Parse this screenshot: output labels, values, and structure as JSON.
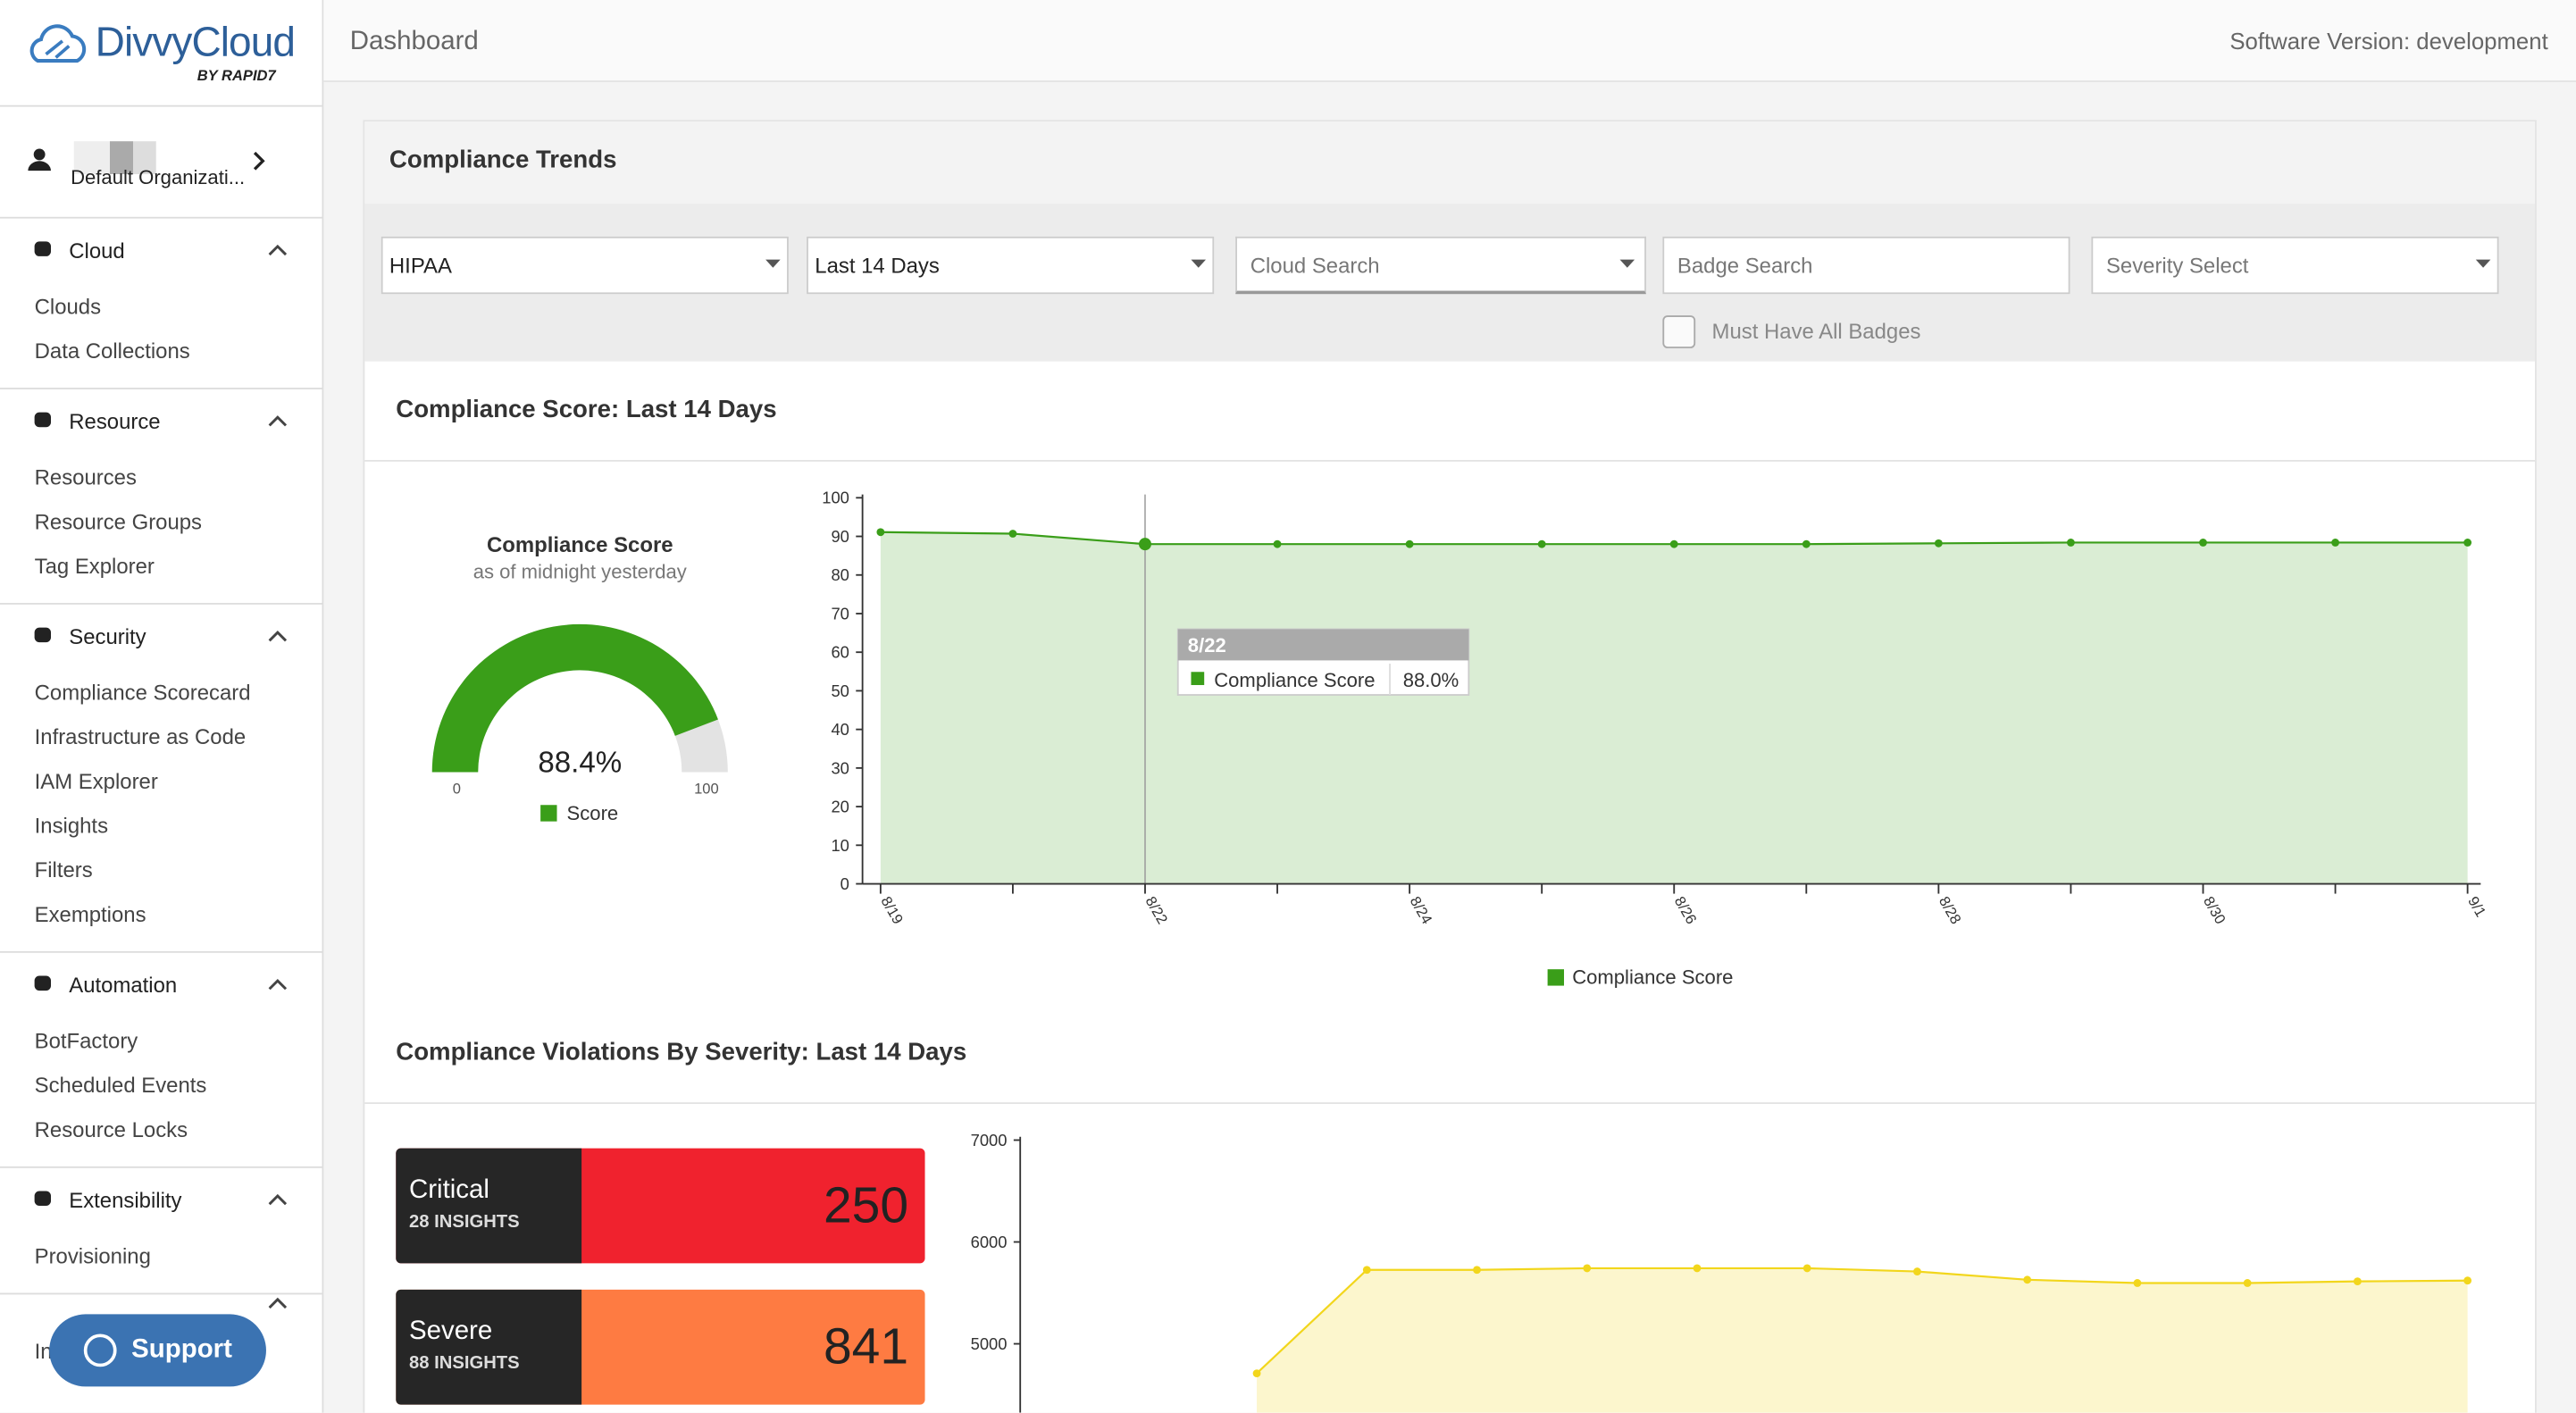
{
  "header": {
    "logo": "DivvyCloud",
    "logo_byline": "BY RAPID7",
    "page_title": "Dashboard",
    "version": "Software Version: development"
  },
  "sidebar": {
    "organization": "Default Organizati...",
    "sections": [
      {
        "title": "Cloud",
        "items": [
          "Clouds",
          "Data Collections"
        ]
      },
      {
        "title": "Resource",
        "items": [
          "Resources",
          "Resource Groups",
          "Tag Explorer"
        ]
      },
      {
        "title": "Security",
        "items": [
          "Compliance Scorecard",
          "Infrastructure as Code",
          "IAM Explorer",
          "Insights",
          "Filters",
          "Exemptions"
        ]
      },
      {
        "title": "Automation",
        "items": [
          "BotFactory",
          "Scheduled Events",
          "Resource Locks"
        ]
      },
      {
        "title": "Extensibility",
        "items": [
          "Provisioning"
        ]
      },
      {
        "items": [
          "Integrations"
        ]
      }
    ],
    "support_button": "Support"
  },
  "trends": {
    "title": "Compliance Trends",
    "filters": {
      "framework": "HIPAA",
      "range": "Last 14 Days",
      "cloud": "Cloud Search",
      "badge": "Badge Search",
      "severity": "Severity Select",
      "badge_checkbox": "Must Have All Badges"
    }
  },
  "sections": {
    "score": "Compliance Score: Last 14 Days",
    "violations": "Compliance Violations By Severity: Last 14 Days"
  },
  "severity_cards": [
    {
      "name": "Critical",
      "insights": "28 INSIGHTS",
      "count": 250,
      "color": "#f0222e"
    },
    {
      "name": "Severe",
      "insights": "88 INSIGHTS",
      "count": 841,
      "color": "#fe7b42"
    }
  ],
  "chart_data": [
    {
      "type": "gauge",
      "title": "Compliance Score",
      "subtitle": "as of midnight yesterday",
      "min": 0,
      "max": 100,
      "value": 88.4,
      "value_label": "88.4%",
      "color": "#3a9e19",
      "legend": "Score"
    },
    {
      "type": "area",
      "categories": [
        "8/19",
        null,
        "8/22",
        null,
        "8/24",
        null,
        "8/26",
        null,
        "8/28",
        null,
        "8/30",
        null,
        "9/1"
      ],
      "series": [
        {
          "name": "Compliance Score",
          "color": "#3a9e19",
          "values": [
            91.1,
            90.7,
            88.0,
            88.0,
            88.0,
            88.0,
            88.0,
            88.0,
            88.2,
            88.4,
            88.4,
            88.4,
            88.4
          ]
        }
      ],
      "ylim": [
        0,
        100
      ],
      "yticks": [
        0,
        10,
        20,
        30,
        40,
        50,
        60,
        70,
        80,
        90,
        100
      ],
      "tooltip": {
        "category": "8/22",
        "series": "Compliance Score",
        "value_label": "88.0%"
      }
    },
    {
      "type": "area",
      "series": [
        {
          "color": "#f2d61c",
          "values": [
            4710,
            5726,
            5726,
            5742,
            5742,
            5742,
            5710,
            5629,
            5597,
            5597,
            5613,
            5621
          ]
        }
      ],
      "ylim": [
        4000,
        7000
      ],
      "yticks": [
        5000,
        6000,
        7000
      ]
    }
  ]
}
